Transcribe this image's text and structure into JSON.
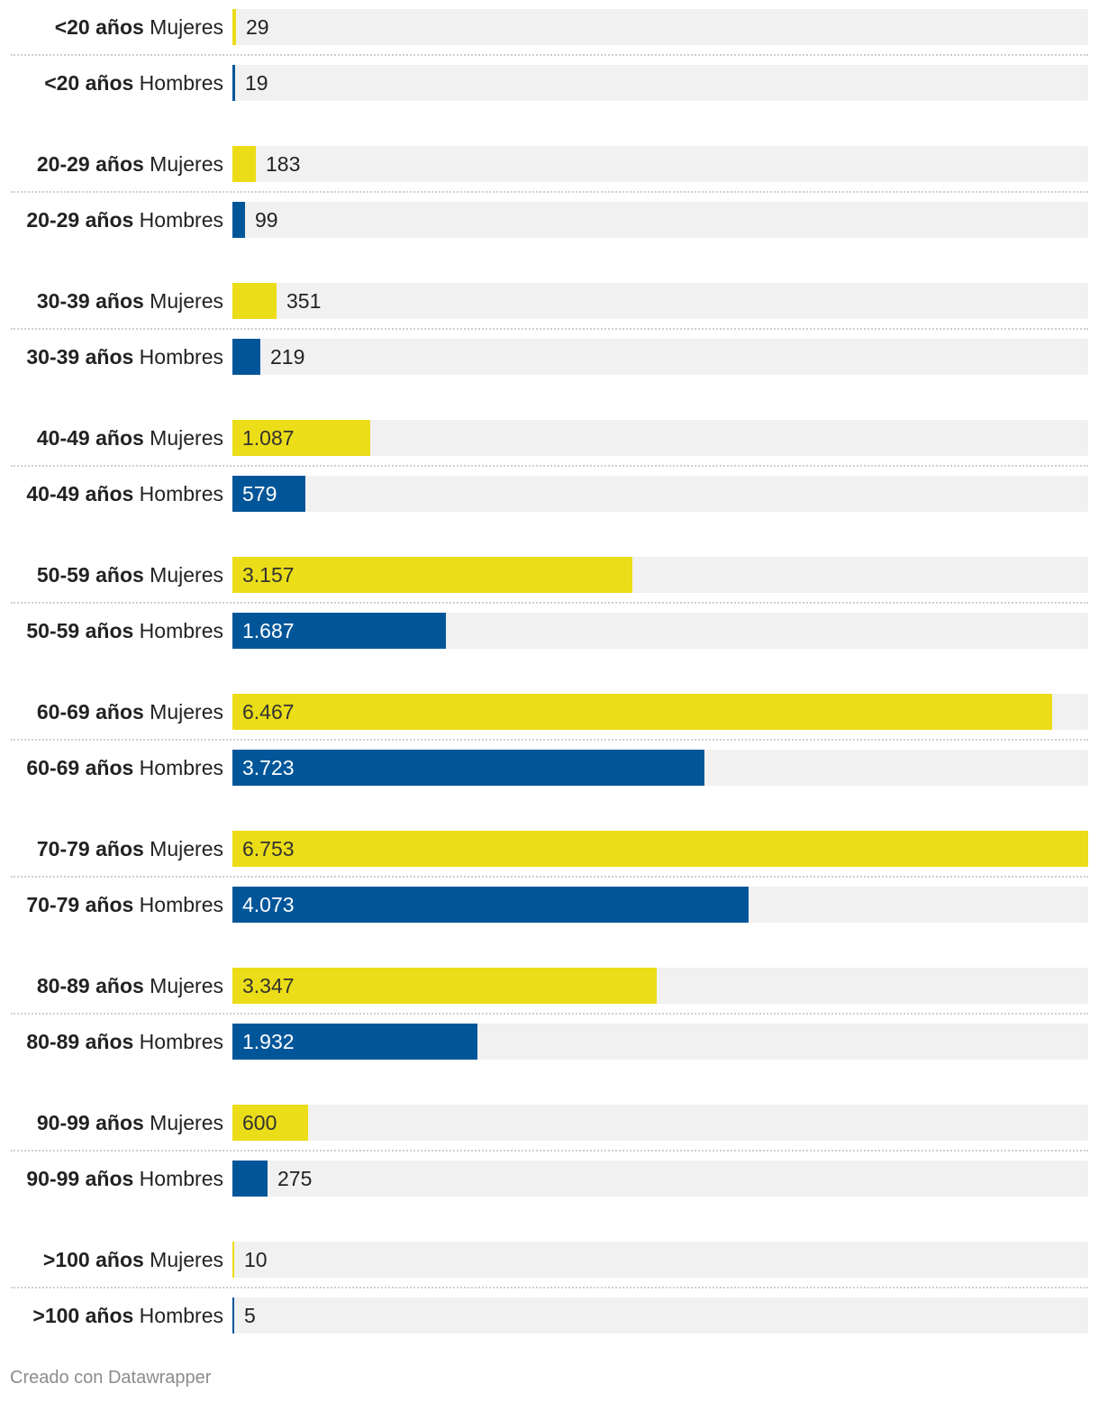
{
  "chart_data": {
    "type": "bar",
    "orientation": "horizontal",
    "max": 6753,
    "colors": {
      "mujeres": "#ebdd17",
      "hombres": "#015699",
      "track": "#f1f1f1"
    },
    "groups": [
      {
        "age": "<20 años",
        "rows": [
          {
            "sex": "Mujeres",
            "value": 29,
            "display": "29"
          },
          {
            "sex": "Hombres",
            "value": 19,
            "display": "19"
          }
        ]
      },
      {
        "age": "20-29 años",
        "rows": [
          {
            "sex": "Mujeres",
            "value": 183,
            "display": "183"
          },
          {
            "sex": "Hombres",
            "value": 99,
            "display": "99"
          }
        ]
      },
      {
        "age": "30-39 años",
        "rows": [
          {
            "sex": "Mujeres",
            "value": 351,
            "display": "351"
          },
          {
            "sex": "Hombres",
            "value": 219,
            "display": "219"
          }
        ]
      },
      {
        "age": "40-49 años",
        "rows": [
          {
            "sex": "Mujeres",
            "value": 1087,
            "display": "1.087"
          },
          {
            "sex": "Hombres",
            "value": 579,
            "display": "579"
          }
        ]
      },
      {
        "age": "50-59 años",
        "rows": [
          {
            "sex": "Mujeres",
            "value": 3157,
            "display": "3.157"
          },
          {
            "sex": "Hombres",
            "value": 1687,
            "display": "1.687"
          }
        ]
      },
      {
        "age": "60-69 años",
        "rows": [
          {
            "sex": "Mujeres",
            "value": 6467,
            "display": "6.467"
          },
          {
            "sex": "Hombres",
            "value": 3723,
            "display": "3.723"
          }
        ]
      },
      {
        "age": "70-79 años",
        "rows": [
          {
            "sex": "Mujeres",
            "value": 6753,
            "display": "6.753"
          },
          {
            "sex": "Hombres",
            "value": 4073,
            "display": "4.073"
          }
        ]
      },
      {
        "age": "80-89 años",
        "rows": [
          {
            "sex": "Mujeres",
            "value": 3347,
            "display": "3.347"
          },
          {
            "sex": "Hombres",
            "value": 1932,
            "display": "1.932"
          }
        ]
      },
      {
        "age": "90-99 años",
        "rows": [
          {
            "sex": "Mujeres",
            "value": 600,
            "display": "600"
          },
          {
            "sex": "Hombres",
            "value": 275,
            "display": "275"
          }
        ]
      },
      {
        "age": ">100 años",
        "rows": [
          {
            "sex": "Mujeres",
            "value": 10,
            "display": "10"
          },
          {
            "sex": "Hombres",
            "value": 5,
            "display": "5"
          }
        ]
      }
    ]
  },
  "footer": {
    "credit": "Creado con Datawrapper"
  }
}
